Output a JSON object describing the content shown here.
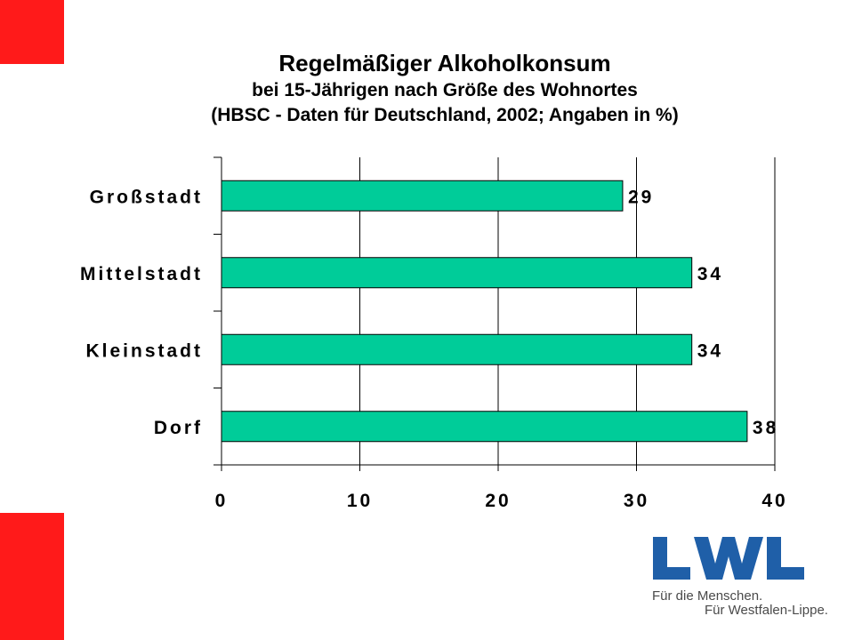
{
  "colors": {
    "accent_red": "#ff1a1a",
    "bar_fill": "#00cc99",
    "logo_blue": "#1f5fa8"
  },
  "slide": {
    "title": "Regelmäßiger Alkoholkonsum",
    "subtitle_line1": "bei 15-Jährigen nach Größe des Wohnortes",
    "subtitle_line2": "(HBSC - Daten für Deutschland, 2002; Angaben in %)"
  },
  "logo": {
    "text": "LWL",
    "tagline_1": "Für die Menschen.",
    "tagline_2": "Für Westfalen-Lippe."
  },
  "chart_data": {
    "type": "bar",
    "orientation": "horizontal",
    "title": "Regelmäßiger Alkoholkonsum",
    "subtitle": "bei 15-Jährigen nach Größe des Wohnortes (HBSC - Daten für Deutschland, 2002; Angaben in %)",
    "categories": [
      "Großstadt",
      "Mittelstadt",
      "Kleinstadt",
      "Dorf"
    ],
    "values": [
      29,
      34,
      34,
      38
    ],
    "data_labels": [
      "29",
      "34",
      "34",
      "38"
    ],
    "xlim": [
      0,
      40
    ],
    "xticks": [
      0,
      10,
      20,
      30,
      40
    ],
    "xtick_labels": [
      "0",
      "10",
      "20",
      "30",
      "40"
    ],
    "grid": "vertical",
    "legend": "none"
  }
}
